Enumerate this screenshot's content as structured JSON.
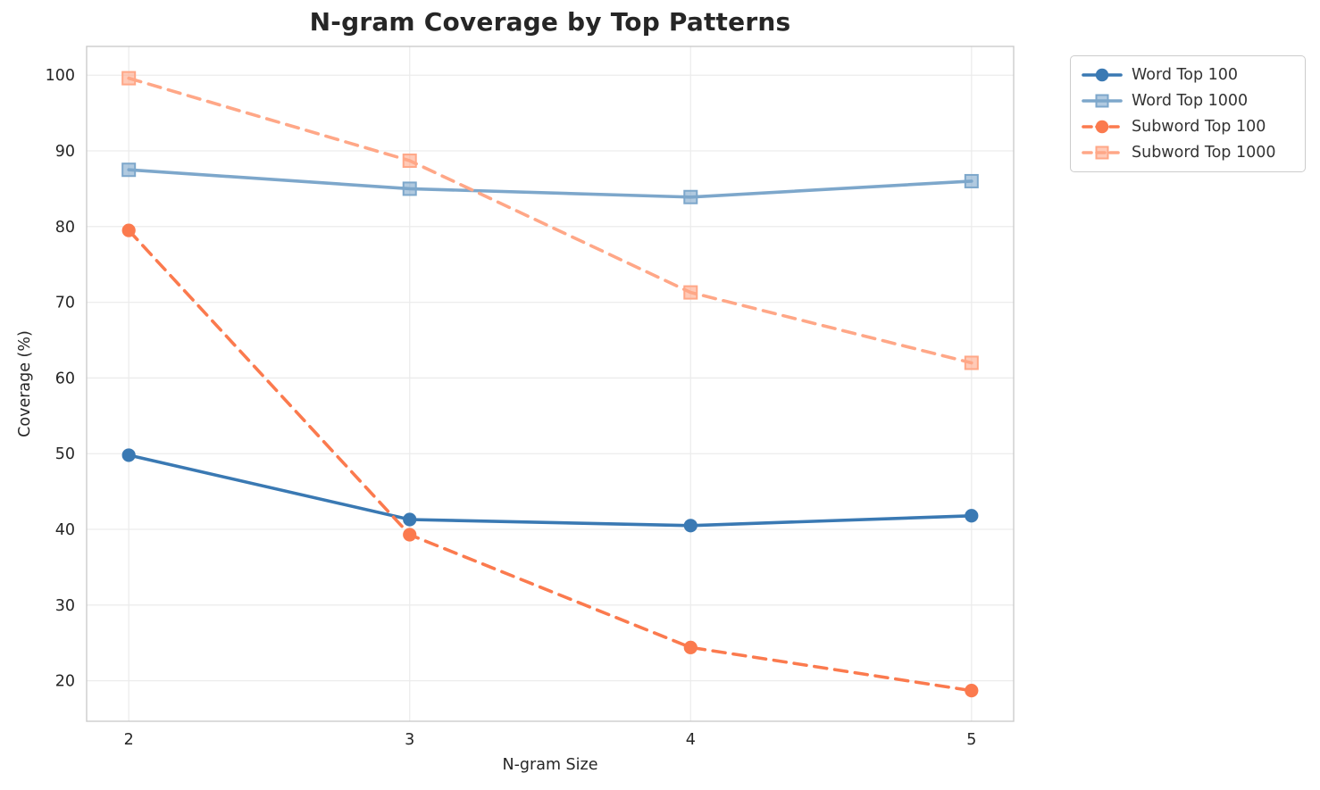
{
  "title": "N-gram Coverage by Top Patterns",
  "chart_data": {
    "type": "line",
    "x": [
      2,
      3,
      4,
      5
    ],
    "xticks": [
      "2",
      "3",
      "4",
      "5"
    ],
    "yticks": [
      20,
      30,
      40,
      50,
      60,
      70,
      80,
      90,
      100
    ],
    "xlabel": "N-gram Size",
    "ylabel": "Coverage (%)",
    "xlim": [
      1.85,
      5.15
    ],
    "ylim": [
      14.65,
      103.8
    ],
    "grid": true,
    "legend_position": "outside upper right",
    "series": [
      {
        "name": "Word Top 100",
        "values": [
          49.8,
          41.3,
          40.5,
          41.8
        ],
        "color": "#3a79b3",
        "marker": "circle",
        "dash": "solid"
      },
      {
        "name": "Word Top 1000",
        "values": [
          87.5,
          85.0,
          83.9,
          86.0
        ],
        "color": "#7da7cb",
        "marker": "square",
        "dash": "solid"
      },
      {
        "name": "Subword Top 100",
        "values": [
          79.5,
          39.3,
          24.4,
          18.7
        ],
        "color": "#fb7a4e",
        "marker": "circle",
        "dash": "dashed"
      },
      {
        "name": "Subword Top 1000",
        "values": [
          99.6,
          88.7,
          71.3,
          62.0
        ],
        "color": "#ffa787",
        "marker": "square",
        "dash": "dashed"
      }
    ]
  },
  "colors": {
    "grid": "#ececec",
    "spine": "#cccccc",
    "tick_text": "#262626",
    "title_text": "#262626",
    "background": "#ffffff"
  }
}
